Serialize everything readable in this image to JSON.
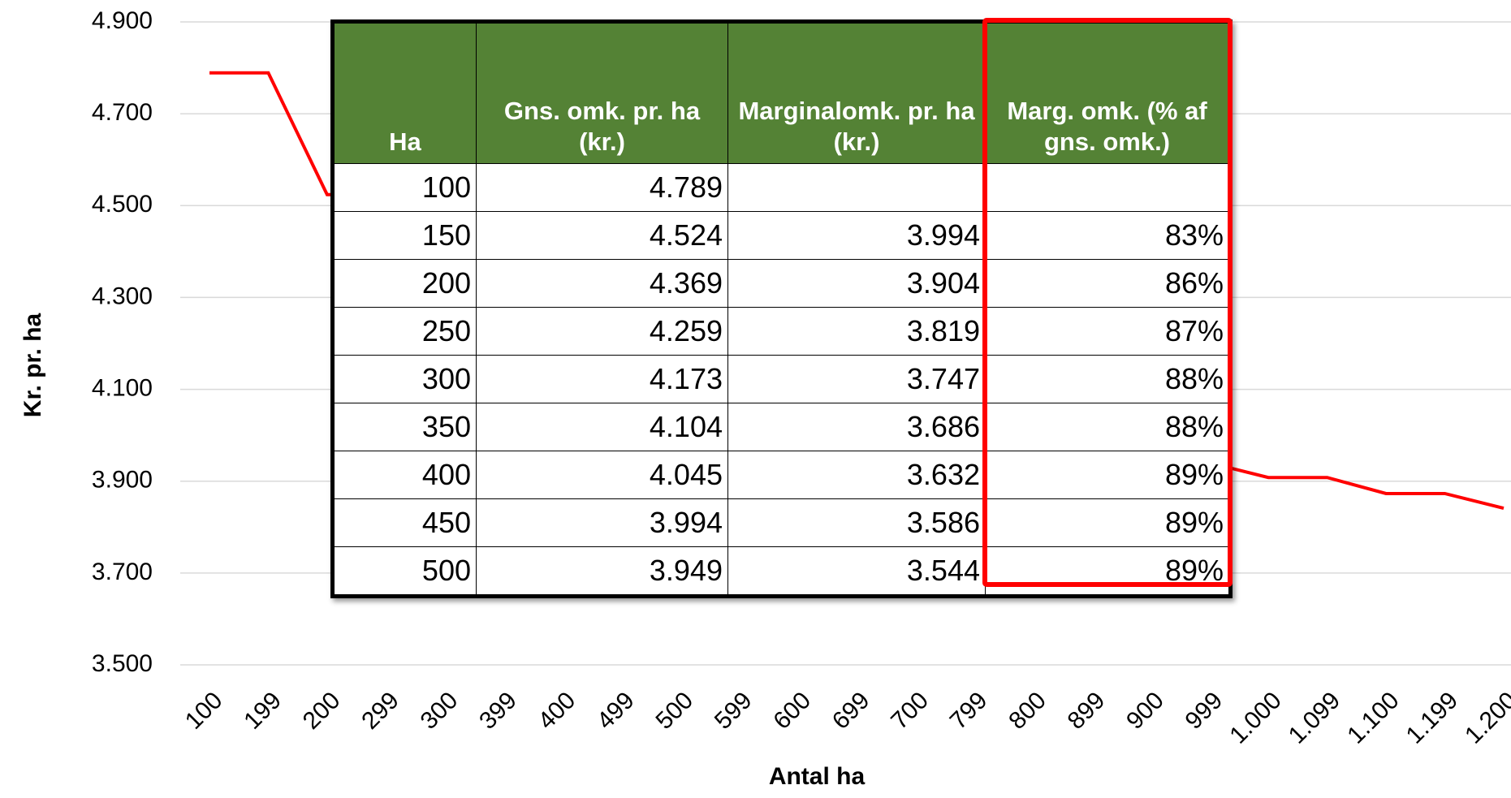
{
  "chart_data": {
    "type": "line",
    "xlabel": "Antal ha",
    "ylabel": "Kr. pr. ha",
    "categories": [
      "100",
      "199",
      "200",
      "299",
      "300",
      "399",
      "400",
      "499",
      "500",
      "599",
      "600",
      "699",
      "700",
      "799",
      "800",
      "899",
      "900",
      "999",
      "1.000",
      "1.099",
      "1.100",
      "1.199",
      "1.200"
    ],
    "values": [
      4789,
      4789,
      4524,
      4524,
      4350,
      4350,
      4250,
      4250,
      4170,
      4170,
      4100,
      4100,
      4040,
      4040,
      3990,
      3990,
      3940,
      3940,
      3908,
      3908,
      3873,
      3873,
      3841
    ],
    "color": "#ff0000",
    "ylim": [
      3500,
      4900
    ],
    "yticks": [
      {
        "value": 3500,
        "label": "3.500"
      },
      {
        "value": 3700,
        "label": "3.700"
      },
      {
        "value": 3900,
        "label": "3.900"
      },
      {
        "value": 4100,
        "label": "4.100"
      },
      {
        "value": 4300,
        "label": "4.300"
      },
      {
        "value": 4500,
        "label": "4.500"
      },
      {
        "value": 4700,
        "label": "4.700"
      },
      {
        "value": 4900,
        "label": "4.900"
      }
    ],
    "grid": true
  },
  "table": {
    "header": [
      "Ha",
      "Gns. omk. pr. ha (kr.)",
      "Marginalomk. pr. ha (kr.)",
      "Marg. omk. (% af gns. omk.)"
    ],
    "rows": [
      [
        "100",
        "4.789",
        null,
        null
      ],
      [
        "150",
        "4.524",
        "3.994",
        "83%"
      ],
      [
        "200",
        "4.369",
        "3.904",
        "86%"
      ],
      [
        "250",
        "4.259",
        "3.819",
        "87%"
      ],
      [
        "300",
        "4.173",
        "3.747",
        "88%"
      ],
      [
        "350",
        "4.104",
        "3.686",
        "88%"
      ],
      [
        "400",
        "4.045",
        "3.632",
        "89%"
      ],
      [
        "450",
        "3.994",
        "3.586",
        "89%"
      ],
      [
        "500",
        "3.949",
        "3.544",
        "89%"
      ]
    ]
  }
}
